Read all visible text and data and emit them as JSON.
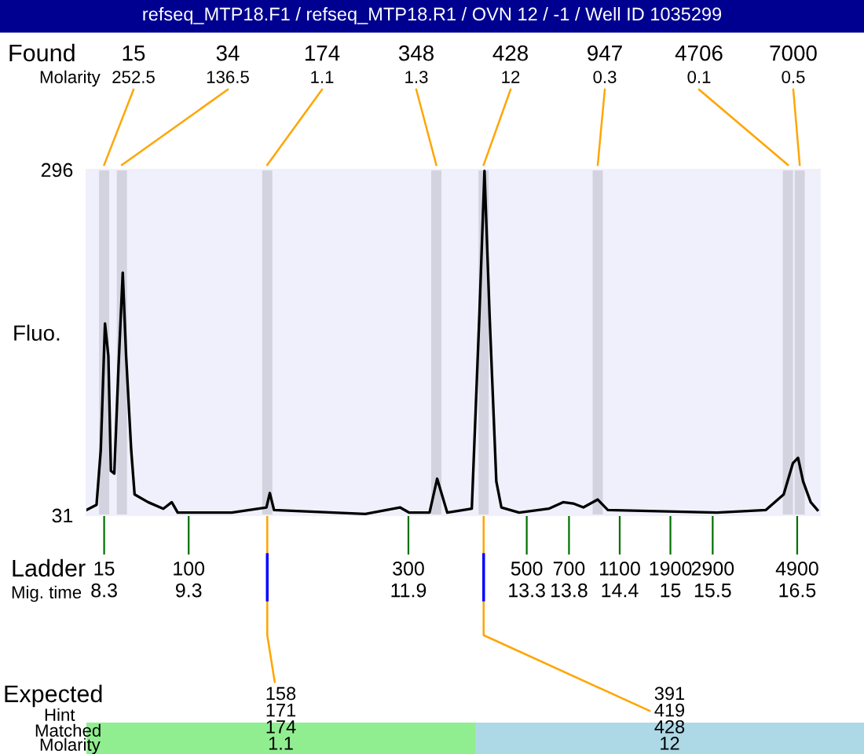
{
  "chart_data": {
    "type": "line",
    "title": "refseq_MTP18.F1 / refseq_MTP18.R1 / OVN 12 / -1 / Well ID 1035299",
    "ylabel": "Fluo.",
    "xlabel": "Mig. time",
    "xlim": [
      8.09,
      16.77
    ],
    "xticks": [
      8.3,
      9.3,
      11.9,
      13.3,
      13.8,
      14.4,
      15,
      15.5,
      16.5
    ],
    "ylim": [
      31,
      296
    ],
    "yticks": [
      31,
      296
    ],
    "grid": false,
    "marker": "none",
    "line_style": "solid",
    "series": [
      {
        "color": "#000000",
        "x": [
          8.09,
          8.21,
          8.26,
          8.31,
          8.35,
          8.38,
          8.42,
          8.47,
          8.52,
          8.56,
          8.62,
          8.66,
          8.82,
          9.0,
          9.1,
          9.17,
          9.81,
          10.22,
          10.26,
          10.31,
          11.39,
          11.8,
          11.91,
          12.15,
          12.24,
          12.36,
          12.65,
          12.74,
          12.8,
          12.86,
          12.94,
          13.0,
          13.21,
          13.56,
          13.73,
          13.85,
          13.97,
          14.14,
          14.26,
          15.55,
          16.13,
          16.34,
          16.45,
          16.51,
          16.57,
          16.66,
          16.74
        ],
        "values": [
          35,
          39,
          81,
          178,
          153,
          65,
          63,
          145,
          217,
          153,
          81,
          47,
          41,
          36,
          41,
          33,
          33,
          37,
          48,
          35,
          32,
          37,
          33,
          33,
          59,
          33,
          36,
          185,
          295,
          185,
          57,
          37,
          33,
          36,
          41,
          40,
          37,
          43,
          35,
          33,
          35,
          47,
          71,
          75,
          57,
          41,
          35
        ]
      }
    ],
    "bands": [
      {
        "axis": "x",
        "from": 8.24,
        "to": 8.36,
        "color": "#d3d3e0",
        "label": "15\n252.5"
      },
      {
        "axis": "x",
        "from": 8.45,
        "to": 8.57,
        "color": "#d3d3e0",
        "label": "34\n136.5"
      },
      {
        "axis": "x",
        "from": 10.17,
        "to": 10.29,
        "color": "#d3d3e0",
        "label": "174\n1.1"
      },
      {
        "axis": "x",
        "from": 12.17,
        "to": 12.29,
        "color": "#d3d3e0",
        "label": "348\n1.3"
      },
      {
        "axis": "x",
        "from": 12.73,
        "to": 12.85,
        "color": "#d3d3e0",
        "label": "428\n12"
      },
      {
        "axis": "x",
        "from": 14.08,
        "to": 14.2,
        "color": "#d3d3e0",
        "label": "947\n0.3"
      },
      {
        "axis": "x",
        "from": 16.33,
        "to": 16.45,
        "color": "#d3d3e0",
        "label": "4706\n0.1"
      },
      {
        "axis": "x",
        "from": 16.47,
        "to": 16.59,
        "color": "#d3d3e0",
        "label": "7000\n0.5"
      }
    ],
    "annotations": [
      "Found",
      "Molarity",
      "Ladder",
      "Expected",
      "Hint",
      "Matched",
      "Molarity",
      "15",
      "100",
      "300",
      "500",
      "700",
      "1100",
      "1900",
      "2900",
      "4900",
      {
        "text": "158\n171\n174\n1.1",
        "x": 10.23,
        "y": 31
      },
      {
        "text": "391\n419\n428\n12",
        "x": 12.79,
        "y": 31
      }
    ]
  }
}
